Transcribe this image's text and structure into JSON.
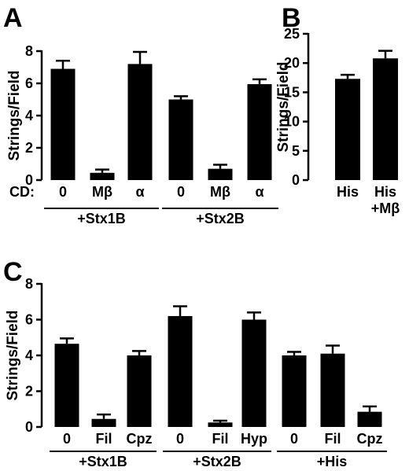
{
  "chart_data": [
    {
      "panel": "A",
      "type": "bar",
      "ylabel": "Strings/Field",
      "ylim": [
        0,
        8
      ],
      "yticks": [
        0,
        2,
        4,
        6,
        8
      ],
      "category_prefix": "CD:",
      "categories": [
        "0",
        "Mβ",
        "α",
        "0",
        "Mβ",
        "α"
      ],
      "values": [
        6.9,
        0.45,
        7.2,
        5.0,
        0.7,
        5.95
      ],
      "errors": [
        0.5,
        0.2,
        0.75,
        0.2,
        0.25,
        0.3
      ],
      "groups": [
        {
          "label": "+Stx1B",
          "span": [
            0,
            2
          ]
        },
        {
          "label": "+Stx2B",
          "span": [
            3,
            5
          ]
        }
      ],
      "color": "#000000"
    },
    {
      "panel": "B",
      "type": "bar",
      "ylabel": "Strings/Field",
      "ylim": [
        0,
        25
      ],
      "yticks": [
        0,
        5,
        10,
        15,
        20,
        25
      ],
      "categories": [
        "His",
        "His"
      ],
      "category_sublabels": [
        "",
        "+Mβ"
      ],
      "values": [
        17.3,
        20.8
      ],
      "errors": [
        0.7,
        1.3
      ],
      "color": "#000000"
    },
    {
      "panel": "C",
      "type": "bar",
      "ylabel": "Strings/Field",
      "ylim": [
        0,
        8
      ],
      "yticks": [
        0,
        2,
        4,
        6,
        8
      ],
      "categories": [
        "0",
        "Fil",
        "Cpz",
        "0",
        "Fil",
        "Hyp",
        "0",
        "Fil",
        "Cpz"
      ],
      "values": [
        4.65,
        0.45,
        4.0,
        6.2,
        0.25,
        6.0,
        4.0,
        4.1,
        0.85
      ],
      "errors": [
        0.3,
        0.25,
        0.25,
        0.55,
        0.1,
        0.4,
        0.2,
        0.45,
        0.3
      ],
      "groups": [
        {
          "label": "+Stx1B",
          "span": [
            0,
            2
          ]
        },
        {
          "label": "+Stx2B",
          "span": [
            3,
            5
          ]
        },
        {
          "label": "+His",
          "span": [
            6,
            8
          ]
        }
      ],
      "color": "#000000"
    }
  ]
}
